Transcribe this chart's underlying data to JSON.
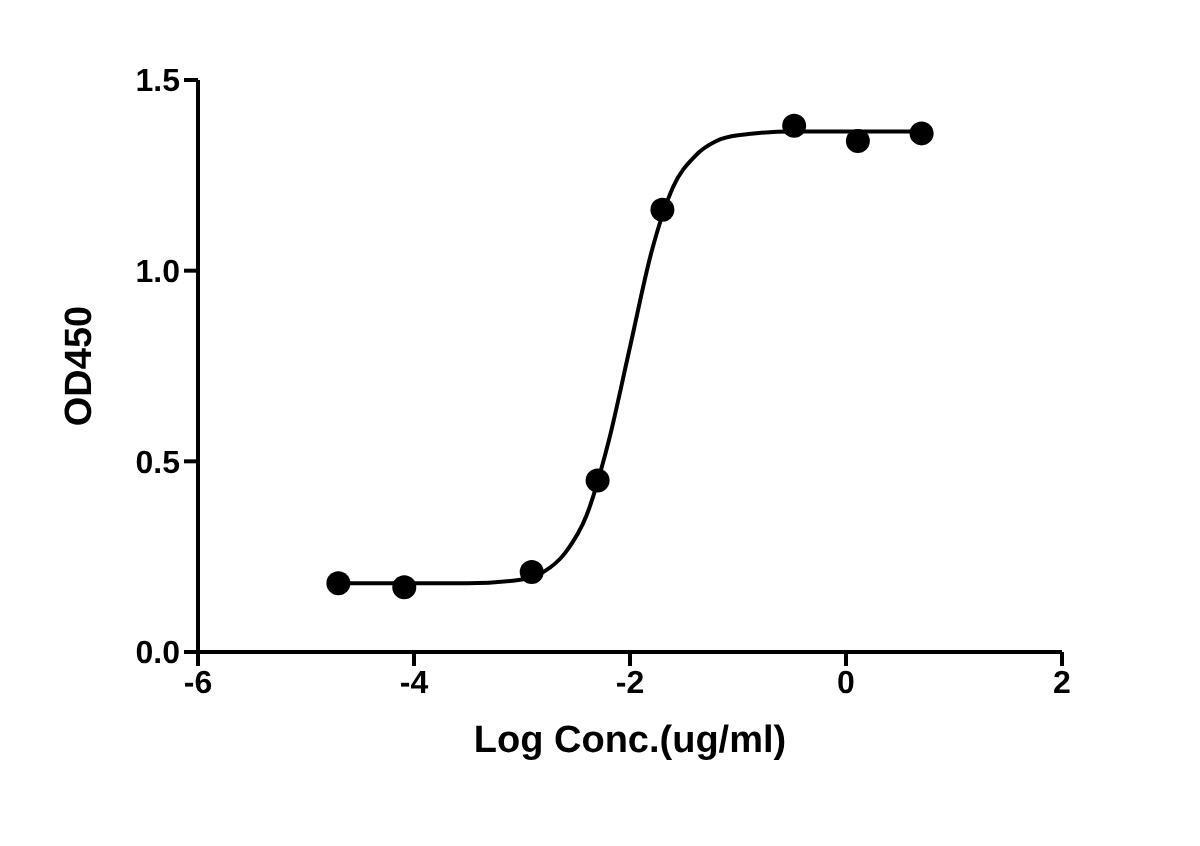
{
  "chart_data": {
    "type": "scatter",
    "xlabel": "Log Conc.(ug/ml)",
    "ylabel": "OD450",
    "xlim": [
      -6,
      2
    ],
    "ylim": [
      0,
      1.5
    ],
    "xticks": [
      -6,
      -4,
      -2,
      0,
      2
    ],
    "yticks": [
      {
        "value": 0,
        "label": "0.0"
      },
      0.5,
      {
        "value": 1,
        "label": "1.0"
      },
      1.5
    ],
    "series": [
      {
        "type": "line",
        "color": "#000000",
        "x": [
          -4.7,
          -3.5,
          -3.0,
          -2.8,
          -2.6,
          -2.4,
          -2.2,
          -2.0,
          -1.8,
          -1.6,
          -1.4,
          -1.2,
          -1.0,
          -0.5,
          0.7
        ],
        "values": [
          0.18,
          0.18,
          0.19,
          0.21,
          0.26,
          0.36,
          0.55,
          0.8,
          1.05,
          1.22,
          1.3,
          1.34,
          1.355,
          1.365,
          1.365
        ]
      },
      {
        "color": "#000000",
        "marker": "circle",
        "x": [
          -4.7,
          -4.09,
          -2.91,
          -2.3,
          -1.7,
          -0.48,
          0.11,
          0.7
        ],
        "values": [
          0.18,
          0.17,
          0.21,
          0.45,
          1.16,
          1.38,
          1.34,
          1.36
        ]
      }
    ]
  }
}
